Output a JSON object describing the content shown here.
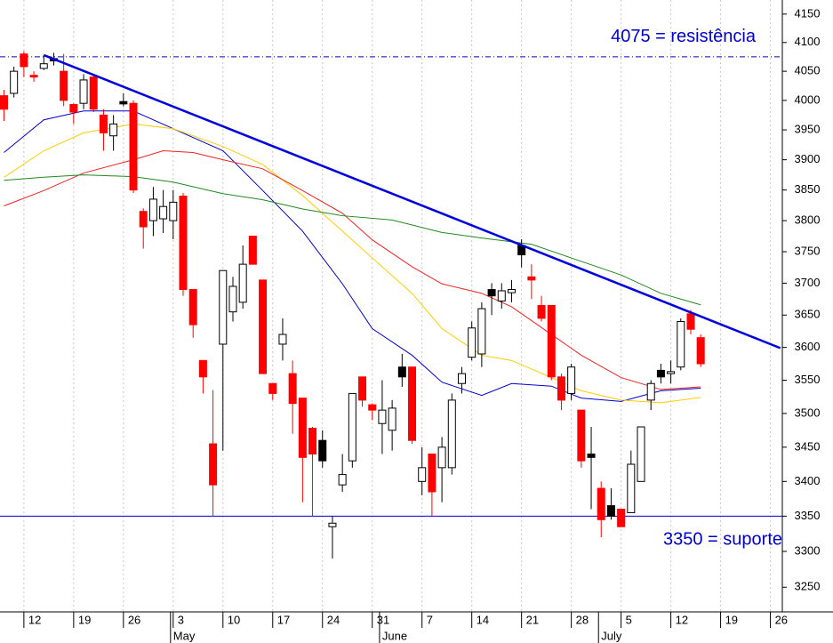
{
  "chart_data": {
    "type": "candlestick",
    "log_scale": true,
    "grid": true,
    "xlim": [
      -2.4,
      76.2
    ],
    "ylim": [
      3216,
      4175
    ],
    "yticks": [
      3250,
      3300,
      3350,
      3400,
      3450,
      3500,
      3550,
      3600,
      3650,
      3700,
      3750,
      3800,
      3850,
      3900,
      3950,
      4000,
      4050,
      4100,
      4150
    ],
    "xticks": [
      {
        "value": 0,
        "label": "12"
      },
      {
        "value": 5,
        "label": "19"
      },
      {
        "value": 10,
        "label": "26"
      },
      {
        "value": 15,
        "label": "3"
      },
      {
        "value": 20,
        "label": "10"
      },
      {
        "value": 25,
        "label": "17"
      },
      {
        "value": 30,
        "label": "24"
      },
      {
        "value": 35,
        "label": "31"
      },
      {
        "value": 40,
        "label": "7"
      },
      {
        "value": 45,
        "label": "14"
      },
      {
        "value": 50,
        "label": "21"
      },
      {
        "value": 55,
        "label": "28"
      },
      {
        "value": 60,
        "label": "5"
      },
      {
        "value": 65,
        "label": "12"
      },
      {
        "value": 70,
        "label": "19"
      },
      {
        "value": 75,
        "label": "26"
      }
    ],
    "month_ticks": [
      {
        "value": 15,
        "label": "May"
      },
      {
        "value": 36,
        "label": "June"
      },
      {
        "value": 58,
        "label": "July"
      }
    ],
    "x": [
      -2,
      -1,
      0,
      1,
      2,
      3,
      4,
      5,
      6,
      7,
      8,
      9,
      10,
      11,
      12,
      13,
      14,
      15,
      16,
      17,
      18,
      19,
      20,
      21,
      22,
      23,
      24,
      25,
      26,
      27,
      28,
      29,
      30,
      31,
      32,
      33,
      34,
      35,
      36,
      37,
      38,
      39,
      40,
      41,
      42,
      43,
      44,
      45,
      46,
      47,
      48,
      49,
      50,
      51,
      52,
      53,
      54,
      55,
      56,
      57,
      58,
      59,
      60,
      61,
      62,
      63,
      64,
      65,
      66,
      67,
      68
    ],
    "open": [
      4008,
      4012,
      4080,
      4043,
      4055,
      4072,
      4050,
      3993,
      3995,
      4040,
      3975,
      3940,
      3998,
      3995,
      3815,
      3800,
      3803,
      3800,
      3840,
      3690,
      3580,
      3455,
      3605,
      3655,
      3670,
      3775,
      3705,
      3545,
      3605,
      3560,
      3523,
      3478,
      3460,
      3335,
      3395,
      3430,
      3555,
      3513,
      3485,
      3475,
      3570,
      3570,
      3400,
      3440,
      3420,
      3420,
      3545,
      3585,
      3590,
      3690,
      3672,
      3685,
      3760,
      3710,
      3665,
      3665,
      3555,
      3530,
      3505,
      3440,
      3390,
      3365,
      3360,
      3355,
      3400,
      3520,
      3565,
      3560,
      3570,
      3652,
      3615
    ],
    "high": [
      4018,
      4058,
      4085,
      4050,
      4078,
      4082,
      4080,
      3995,
      4045,
      4045,
      3985,
      3975,
      4012,
      4000,
      3820,
      3855,
      3850,
      3850,
      3845,
      3690,
      3580,
      3535,
      3720,
      3710,
      3760,
      3775,
      3705,
      3545,
      3645,
      3580,
      3523,
      3480,
      3475,
      3350,
      3440,
      3530,
      3555,
      3515,
      3550,
      3520,
      3590,
      3570,
      3450,
      3440,
      3465,
      3530,
      3570,
      3640,
      3670,
      3700,
      3700,
      3705,
      3770,
      3730,
      3680,
      3665,
      3560,
      3575,
      3505,
      3480,
      3400,
      3390,
      3360,
      3445,
      3480,
      3550,
      3575,
      3580,
      3645,
      3658,
      3620
    ],
    "low": [
      3965,
      4005,
      4040,
      4032,
      4052,
      4060,
      3990,
      3960,
      3985,
      3980,
      3915,
      3915,
      3990,
      3845,
      3755,
      3775,
      3780,
      3770,
      3680,
      3615,
      3530,
      3350,
      3445,
      3640,
      3660,
      3730,
      3560,
      3520,
      3580,
      3470,
      3370,
      3350,
      3420,
      3290,
      3385,
      3420,
      3510,
      3490,
      3440,
      3445,
      3540,
      3455,
      3380,
      3350,
      3370,
      3410,
      3530,
      3580,
      3570,
      3650,
      3660,
      3670,
      3725,
      3675,
      3640,
      3550,
      3505,
      3520,
      3420,
      3360,
      3320,
      3345,
      3335,
      3355,
      3400,
      3505,
      3545,
      3545,
      3565,
      3620,
      3570
    ],
    "close": [
      3985,
      4050,
      4058,
      4040,
      4063,
      4068,
      4000,
      3980,
      4035,
      3985,
      3945,
      3960,
      3994,
      3850,
      3790,
      3835,
      3823,
      3830,
      3690,
      3635,
      3555,
      3395,
      3720,
      3695,
      3730,
      3730,
      3560,
      3530,
      3620,
      3515,
      3435,
      3440,
      3430,
      3340,
      3410,
      3530,
      3520,
      3505,
      3505,
      3508,
      3555,
      3460,
      3420,
      3385,
      3450,
      3520,
      3560,
      3630,
      3660,
      3680,
      3688,
      3690,
      3745,
      3705,
      3645,
      3555,
      3520,
      3570,
      3430,
      3435,
      3345,
      3350,
      3335,
      3425,
      3480,
      3545,
      3555,
      3563,
      3640,
      3628,
      3575
    ],
    "candle_colors": [
      "#ff0000",
      "#ffffff",
      "#ff0000",
      "#ff0000",
      "#ffffff",
      "#000000",
      "#ff0000",
      "#ff0000",
      "#ffffff",
      "#ff0000",
      "#ff0000",
      "#ffffff",
      "#000000",
      "#ff0000",
      "#ff0000",
      "#ffffff",
      "#ffffff",
      "#ffffff",
      "#ff0000",
      "#ff0000",
      "#ff0000",
      "#ff0000",
      "#ffffff",
      "#ffffff",
      "#ffffff",
      "#ff0000",
      "#ff0000",
      "#ff0000",
      "#ffffff",
      "#ff0000",
      "#ff0000",
      "#ff0000",
      "#000000",
      "#ffffff",
      "#ffffff",
      "#ffffff",
      "#ff0000",
      "#ff0000",
      "#ffffff",
      "#ffffff",
      "#000000",
      "#ff0000",
      "#ffffff",
      "#ff0000",
      "#ffffff",
      "#ffffff",
      "#ffffff",
      "#ffffff",
      "#ffffff",
      "#000000",
      "#ffffff",
      "#ffffff",
      "#000000",
      "#ff0000",
      "#ff0000",
      "#ff0000",
      "#ff0000",
      "#ffffff",
      "#ff0000",
      "#000000",
      "#ff0000",
      "#000000",
      "#ff0000",
      "#ffffff",
      "#ffffff",
      "#ffffff",
      "#000000",
      "#ffffff",
      "#ffffff",
      "#ff0000",
      "#ff0000"
    ],
    "series": [
      {
        "color": "#0000cc",
        "x": [
          -2,
          2,
          6,
          11,
          15,
          20,
          24,
          28,
          32,
          35,
          39,
          42,
          46,
          49,
          53,
          56,
          60,
          64,
          68
        ],
        "values": [
          3912,
          3967,
          3982,
          3982,
          3952,
          3915,
          3849,
          3783,
          3699,
          3629,
          3588,
          3547,
          3527,
          3545,
          3541,
          3523,
          3518,
          3534,
          3538
        ]
      },
      {
        "color": "#ffcc00",
        "x": [
          -2,
          2,
          6,
          11,
          15,
          20,
          24,
          28,
          32,
          35,
          39,
          42,
          46,
          49,
          53,
          56,
          60,
          64,
          68
        ],
        "values": [
          3871,
          3915,
          3945,
          3960,
          3952,
          3922,
          3892,
          3841,
          3783,
          3740,
          3684,
          3629,
          3588,
          3580,
          3554,
          3534,
          3520,
          3516,
          3524
        ]
      },
      {
        "color": "#ee2222",
        "x": [
          -2,
          2,
          6,
          11,
          14,
          17,
          20,
          24,
          28,
          32,
          35,
          39,
          42,
          46,
          49,
          53,
          56,
          60,
          64,
          68
        ],
        "values": [
          3824,
          3849,
          3878,
          3900,
          3915,
          3912,
          3900,
          3885,
          3849,
          3812,
          3769,
          3726,
          3699,
          3684,
          3663,
          3620,
          3588,
          3554,
          3536,
          3540
        ]
      },
      {
        "color": "#228822",
        "x": [
          -2,
          2,
          6,
          11,
          15,
          20,
          24,
          28,
          32,
          37,
          42,
          46,
          51,
          55,
          60,
          64,
          68
        ],
        "values": [
          3866,
          3871,
          3875,
          3872,
          3863,
          3844,
          3834,
          3819,
          3808,
          3801,
          3781,
          3772,
          3762,
          3740,
          3713,
          3684,
          3666
        ]
      }
    ],
    "trendline": {
      "color": "#0000dd",
      "x": [
        2,
        76
      ],
      "values": [
        4078,
        3599
      ]
    },
    "levels": [
      {
        "value": 4075,
        "label": "4075 = resistência",
        "color": "#0000cc",
        "dashed": true
      },
      {
        "value": 3350,
        "label": "3350 = suporte",
        "color": "#0000cc",
        "dashed": false
      }
    ]
  }
}
